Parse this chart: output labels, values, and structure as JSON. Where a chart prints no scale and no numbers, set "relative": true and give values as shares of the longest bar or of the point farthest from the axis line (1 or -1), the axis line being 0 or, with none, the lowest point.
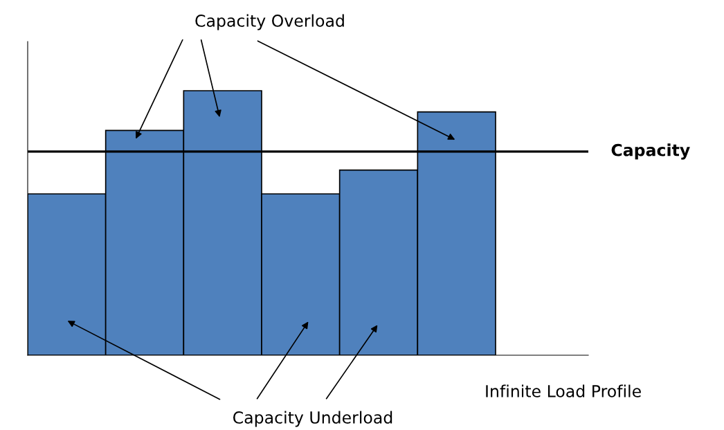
{
  "chart_data": {
    "type": "bar",
    "relative": true,
    "categories": [
      null,
      null,
      null,
      null,
      null,
      null
    ],
    "values": [
      0.61,
      0.85,
      1,
      0.61,
      0.7,
      0.92
    ],
    "color": "#4f81bd",
    "ref_lines": [
      {
        "axis": "y",
        "value": 0.77,
        "label": "Capacity",
        "color": "#000000"
      }
    ],
    "annotations": [
      "Capacity Overload",
      "Capacity Underload",
      "Infinite Load Profile"
    ],
    "grid": false,
    "legend": false
  }
}
